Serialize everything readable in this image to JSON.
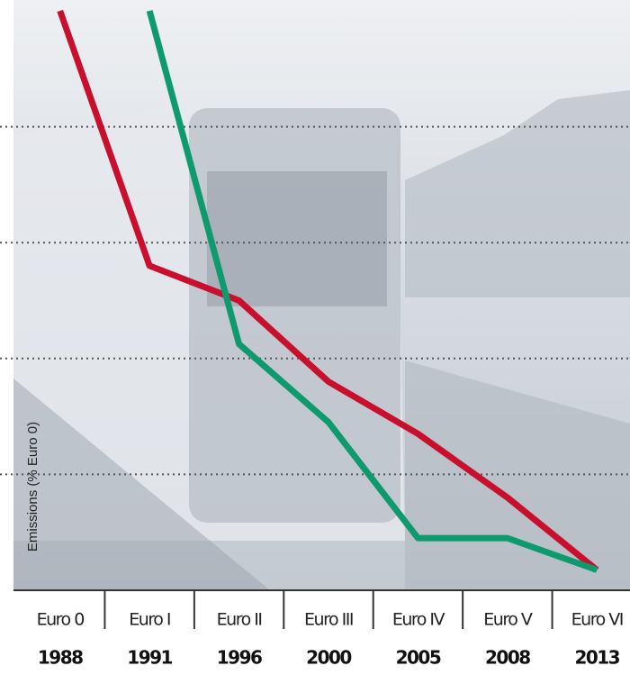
{
  "chart_data": {
    "type": "line",
    "y_label": "Emissions (% Euro 0)",
    "categories": [
      "Euro 0",
      "Euro I",
      "Euro II",
      "Euro III",
      "Euro IV",
      "Euro V",
      "Euro VI"
    ],
    "category_years": [
      "1988",
      "1991",
      "1996",
      "2000",
      "2005",
      "2008",
      "2013"
    ],
    "series": [
      {
        "color": "#c8102e",
        "values": [
          100,
          56,
          50,
          36,
          27,
          16,
          3.5
        ]
      },
      {
        "color": "#0f9a6e",
        "values": [
          null,
          100,
          42.5,
          29,
          9,
          9,
          3.5
        ]
      }
    ],
    "ylim": [
      0,
      100
    ],
    "yticks": [
      20,
      40,
      60,
      80
    ],
    "grid": true
  }
}
